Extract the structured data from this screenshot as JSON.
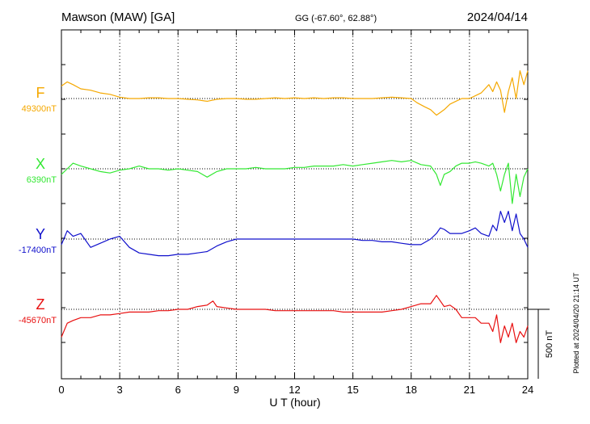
{
  "header": {
    "station": "Mawson (MAW)  [GA]",
    "coords": "GG (-67.60°,  62.88°)",
    "date": "2024/04/14"
  },
  "side_note": "Plotted at 2024/04/20 21:14 UT",
  "scale_label": "500 nT",
  "chart_data": {
    "type": "line",
    "title": "Mawson (MAW)  [GA]",
    "xlabel": "U T (hour)",
    "xlim": [
      0,
      24
    ],
    "xticks": [
      "0",
      "3",
      "6",
      "9",
      "12",
      "15",
      "18",
      "21",
      "24"
    ],
    "grid": "vertical dotted every 3 h; dotted baseline per component",
    "scale_bar_nT": 500,
    "series": [
      {
        "name": "F",
        "baseline_label": "49300nT",
        "color": "#f5a800",
        "x": [
          0,
          0.3,
          0.6,
          1,
          1.5,
          2,
          2.5,
          3,
          3.5,
          4,
          4.5,
          5,
          5.5,
          6,
          6.5,
          7,
          7.5,
          8,
          8.5,
          9,
          9.5,
          10,
          10.5,
          11,
          11.5,
          12,
          12.5,
          13,
          13.5,
          14,
          14.5,
          15,
          15.5,
          16,
          16.5,
          17,
          17.5,
          18,
          18.3,
          18.7,
          19,
          19.3,
          19.5,
          19.7,
          20,
          20.3,
          20.6,
          21,
          21.3,
          21.6,
          22,
          22.2,
          22.4,
          22.6,
          22.8,
          23,
          23.2,
          23.4,
          23.6,
          23.8,
          24
        ],
        "values": [
          90,
          120,
          100,
          70,
          60,
          40,
          30,
          10,
          0,
          0,
          5,
          5,
          0,
          0,
          -5,
          -10,
          -20,
          -5,
          0,
          0,
          -5,
          -5,
          0,
          5,
          0,
          5,
          0,
          5,
          0,
          5,
          5,
          0,
          0,
          0,
          5,
          10,
          5,
          0,
          -30,
          -60,
          -80,
          -120,
          -100,
          -80,
          -40,
          -20,
          0,
          0,
          20,
          40,
          100,
          50,
          120,
          60,
          -100,
          50,
          150,
          0,
          200,
          100,
          200
        ]
      },
      {
        "name": "X",
        "baseline_label": "6390nT",
        "color": "#33e833",
        "x": [
          0,
          0.3,
          0.6,
          1,
          1.5,
          2,
          2.5,
          3,
          3.5,
          4,
          4.5,
          5,
          5.5,
          6,
          6.5,
          7,
          7.5,
          8,
          8.5,
          9,
          9.5,
          10,
          10.5,
          11,
          11.5,
          12,
          12.5,
          13,
          13.5,
          14,
          14.5,
          15,
          15.5,
          16,
          16.5,
          17,
          17.5,
          18,
          18.5,
          19,
          19.3,
          19.5,
          19.7,
          20,
          20.3,
          20.6,
          21,
          21.3,
          21.6,
          22,
          22.2,
          22.4,
          22.6,
          22.8,
          23,
          23.2,
          23.4,
          23.6,
          23.8,
          24
        ],
        "values": [
          -40,
          0,
          40,
          20,
          0,
          -20,
          -30,
          -10,
          0,
          20,
          0,
          0,
          -10,
          0,
          -10,
          -20,
          -60,
          -20,
          0,
          0,
          0,
          10,
          0,
          0,
          0,
          10,
          10,
          20,
          20,
          20,
          30,
          20,
          30,
          40,
          50,
          60,
          50,
          60,
          30,
          20,
          -40,
          -120,
          -40,
          -20,
          20,
          40,
          40,
          50,
          40,
          20,
          40,
          -40,
          -160,
          -40,
          40,
          -250,
          -40,
          -200,
          -60,
          0
        ]
      },
      {
        "name": "Y",
        "baseline_label": "-17400nT",
        "color": "#1010cc",
        "x": [
          0,
          0.3,
          0.6,
          1,
          1.5,
          2,
          2.5,
          3,
          3.5,
          4,
          4.5,
          5,
          5.5,
          6,
          6.5,
          7,
          7.5,
          8,
          8.5,
          9,
          9.5,
          10,
          10.5,
          11,
          11.5,
          12,
          12.5,
          13,
          13.5,
          14,
          14.5,
          15,
          15.5,
          16,
          16.5,
          17,
          17.5,
          18,
          18.5,
          19,
          19.3,
          19.5,
          19.7,
          20,
          20.3,
          20.6,
          21,
          21.3,
          21.6,
          22,
          22.2,
          22.4,
          22.6,
          22.8,
          23,
          23.2,
          23.4,
          23.6,
          23.8,
          24
        ],
        "values": [
          -40,
          60,
          20,
          40,
          -60,
          -30,
          0,
          20,
          -60,
          -100,
          -110,
          -120,
          -120,
          -110,
          -110,
          -100,
          -90,
          -50,
          -20,
          0,
          0,
          0,
          0,
          0,
          0,
          0,
          0,
          0,
          0,
          0,
          0,
          0,
          -10,
          -10,
          -20,
          -20,
          -30,
          -40,
          -40,
          0,
          40,
          80,
          70,
          40,
          40,
          40,
          60,
          80,
          40,
          20,
          100,
          60,
          200,
          120,
          200,
          60,
          180,
          40,
          0,
          -60
        ]
      },
      {
        "name": "Z",
        "baseline_label": "-45670nT",
        "color": "#e81010",
        "x": [
          0,
          0.3,
          0.6,
          1,
          1.5,
          2,
          2.5,
          3,
          3.5,
          4,
          4.5,
          5,
          5.5,
          6,
          6.5,
          7,
          7.5,
          7.8,
          8,
          8.5,
          9,
          9.5,
          10,
          10.5,
          11,
          11.5,
          12,
          12.5,
          13,
          13.5,
          14,
          14.5,
          15,
          15.5,
          16,
          16.5,
          17,
          17.5,
          18,
          18.5,
          19,
          19.3,
          19.5,
          19.7,
          20,
          20.3,
          20.6,
          21,
          21.3,
          21.6,
          22,
          22.2,
          22.4,
          22.6,
          22.8,
          23,
          23.2,
          23.4,
          23.6,
          23.8,
          24
        ],
        "values": [
          -200,
          -100,
          -80,
          -60,
          -60,
          -40,
          -40,
          -30,
          -20,
          -20,
          -20,
          -10,
          -10,
          0,
          0,
          20,
          30,
          60,
          20,
          10,
          0,
          0,
          0,
          0,
          -10,
          -10,
          -10,
          -10,
          -10,
          -10,
          -10,
          -20,
          -20,
          -20,
          -20,
          -20,
          -10,
          0,
          20,
          40,
          40,
          100,
          60,
          20,
          30,
          0,
          -60,
          -60,
          -60,
          -100,
          -100,
          -160,
          -40,
          -240,
          -120,
          -200,
          -100,
          -240,
          -160,
          -200,
          -120
        ]
      }
    ]
  }
}
